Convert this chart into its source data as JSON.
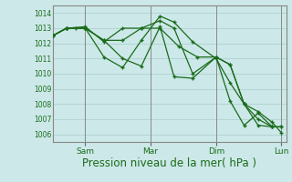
{
  "background_color": "#cce8e8",
  "grid_color": "#aacccc",
  "line_color": "#1a6b1a",
  "marker_color": "#1a6b1a",
  "xlabel": "Pression niveau de la mer( hPa )",
  "xlabel_fontsize": 8.5,
  "ylim": [
    1005.5,
    1014.5
  ],
  "yticks": [
    1006,
    1007,
    1008,
    1009,
    1010,
    1011,
    1012,
    1013,
    1014
  ],
  "xtick_labels": [
    "Sam",
    "Mar",
    "Dim",
    "Lun"
  ],
  "xtick_positions": [
    0.14,
    0.42,
    0.7,
    0.98
  ],
  "vline_positions": [
    0.14,
    0.42,
    0.7,
    0.98
  ],
  "series": [
    {
      "x": [
        0.0,
        0.06,
        0.14,
        0.22,
        0.3,
        0.38,
        0.46,
        0.52,
        0.6,
        0.7,
        0.76,
        0.82,
        0.88,
        0.94,
        0.98
      ],
      "y": [
        1012.5,
        1013.0,
        1013.0,
        1012.2,
        1011.0,
        1010.5,
        1013.1,
        1009.8,
        1009.7,
        1011.1,
        1008.2,
        1006.6,
        1007.4,
        1006.5,
        1006.5
      ]
    },
    {
      "x": [
        0.0,
        0.06,
        0.14,
        0.22,
        0.3,
        0.38,
        0.46,
        0.52,
        0.6,
        0.7,
        0.76,
        0.82,
        0.88,
        0.94,
        0.98
      ],
      "y": [
        1012.5,
        1013.0,
        1013.0,
        1011.1,
        1010.4,
        1012.2,
        1013.8,
        1013.4,
        1012.1,
        1011.0,
        1009.4,
        1008.0,
        1007.5,
        1006.8,
        1006.1
      ]
    },
    {
      "x": [
        0.0,
        0.06,
        0.14,
        0.22,
        0.3,
        0.38,
        0.46,
        0.52,
        0.6,
        0.7,
        0.76,
        0.82,
        0.88,
        0.94
      ],
      "y": [
        1012.5,
        1013.0,
        1013.1,
        1012.1,
        1013.0,
        1013.0,
        1013.5,
        1013.0,
        1010.0,
        1011.1,
        1010.6,
        1008.0,
        1007.0,
        1006.5
      ]
    },
    {
      "x": [
        0.0,
        0.06,
        0.1,
        0.14,
        0.22,
        0.3,
        0.38,
        0.46,
        0.54,
        0.62,
        0.7,
        0.76,
        0.82,
        0.88,
        0.94,
        0.98
      ],
      "y": [
        1012.5,
        1013.0,
        1013.0,
        1013.0,
        1012.2,
        1012.2,
        1013.0,
        1013.0,
        1011.8,
        1011.1,
        1011.1,
        1010.6,
        1008.0,
        1006.6,
        1006.5,
        1006.5
      ]
    }
  ]
}
